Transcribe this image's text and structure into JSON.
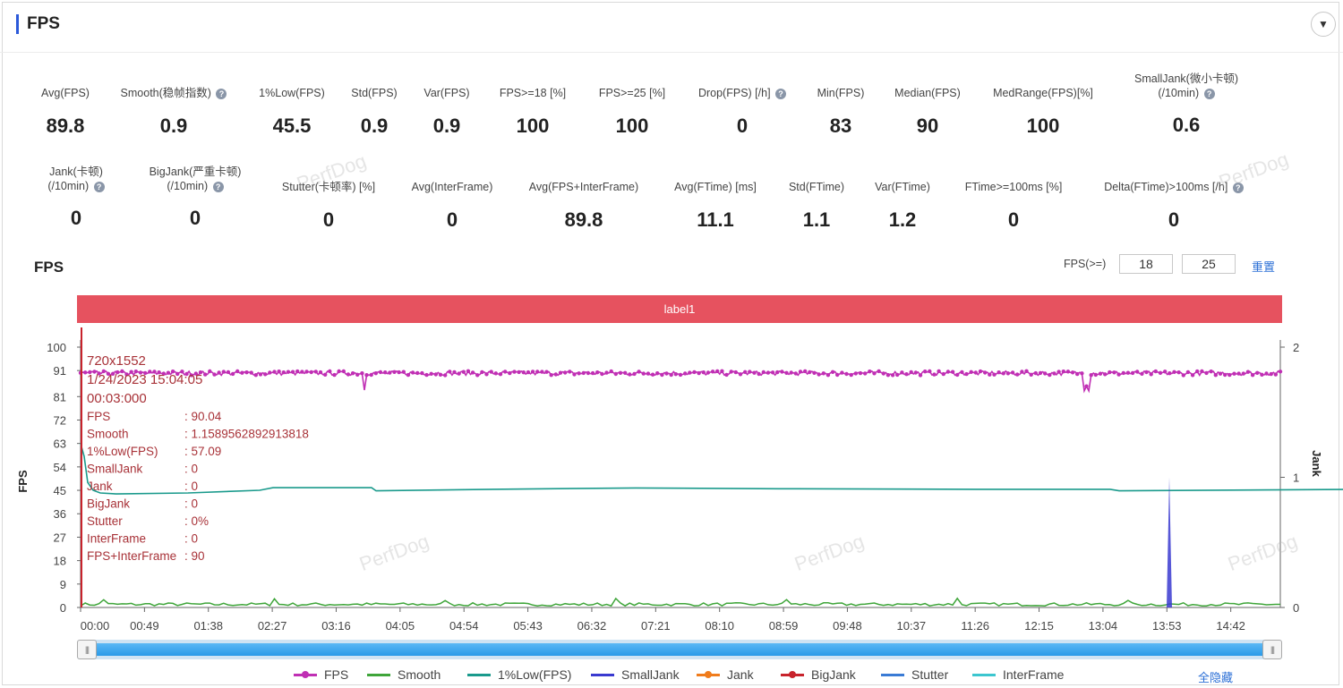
{
  "header": {
    "title": "FPS"
  },
  "metrics_row1": [
    {
      "label": "Avg(FPS)",
      "value": "89.8",
      "help": false,
      "cx": 73
    },
    {
      "label": "Smooth(稳帧指数)",
      "value": "0.9",
      "help": true,
      "cx": 194
    },
    {
      "label": "1%Low(FPS)",
      "value": "45.5",
      "help": false,
      "cx": 326
    },
    {
      "label": "Std(FPS)",
      "value": "0.9",
      "help": false,
      "cx": 418
    },
    {
      "label": "Var(FPS)",
      "value": "0.9",
      "help": false,
      "cx": 499
    },
    {
      "label": "FPS>=18 [%]",
      "value": "100",
      "help": false,
      "cx": 595
    },
    {
      "label": "FPS>=25 [%]",
      "value": "100",
      "help": false,
      "cx": 706
    },
    {
      "label": "Drop(FPS) [/h]",
      "value": "0",
      "help": true,
      "cx": 829
    },
    {
      "label": "Min(FPS)",
      "value": "83",
      "help": false,
      "cx": 939
    },
    {
      "label": "Median(FPS)",
      "value": "90",
      "help": false,
      "cx": 1036
    },
    {
      "label": "MedRange(FPS)[%]",
      "value": "100",
      "help": false,
      "cx": 1165
    }
  ],
  "metric_smalljank": {
    "label1": "SmallJank(微小卡顿)",
    "label2": "(/10min)",
    "value": "0.6"
  },
  "metric_jank": {
    "label1": "Jank(卡顿)",
    "label2": "(/10min)",
    "value": "0"
  },
  "metric_bigjank": {
    "label1": "BigJank(严重卡顿)",
    "label2": "(/10min)",
    "value": "0"
  },
  "metrics_row2": [
    {
      "label": "Stutter(卡顿率) [%]",
      "value": "0",
      "help": false,
      "cx": 367
    },
    {
      "label": "Avg(InterFrame)",
      "value": "0",
      "help": false,
      "cx": 505
    },
    {
      "label": "Avg(FPS+InterFrame)",
      "value": "89.8",
      "help": false,
      "cx": 652
    },
    {
      "label": "Avg(FTime) [ms]",
      "value": "11.1",
      "help": false,
      "cx": 799
    },
    {
      "label": "Std(FTime)",
      "value": "1.1",
      "help": false,
      "cx": 912
    },
    {
      "label": "Var(FTime)",
      "value": "1.2",
      "help": false,
      "cx": 1008
    },
    {
      "label": "FTime>=100ms [%]",
      "value": "0",
      "help": false,
      "cx": 1132
    },
    {
      "label": "Delta(FTime)>100ms [/h]",
      "value": "0",
      "help": true,
      "cx": 1311
    }
  ],
  "chart_header": {
    "title": "FPS",
    "threshold_label": "FPS(>=)",
    "threshold1": "18",
    "threshold2": "25",
    "reset_label": "重置"
  },
  "label_band": "label1",
  "tooltip": {
    "resolution": "720x1552",
    "timestamp": "1/24/2023 15:04:05",
    "elapsed": "00:03:000",
    "rows": [
      {
        "k": "FPS",
        "v": ": 90.04"
      },
      {
        "k": "Smooth",
        "v": ": 1.1589562892913818"
      },
      {
        "k": "1%Low(FPS)",
        "v": ": 57.09"
      },
      {
        "k": "SmallJank",
        "v": ": 0"
      },
      {
        "k": "Jank",
        "v": ": 0"
      },
      {
        "k": "BigJank",
        "v": ": 0"
      },
      {
        "k": "Stutter",
        "v": ": 0%"
      },
      {
        "k": "InterFrame",
        "v": ": 0"
      },
      {
        "k": "FPS+InterFrame",
        "v": ": 90"
      }
    ]
  },
  "chart_data": {
    "type": "line",
    "ylabel": "FPS",
    "y2label": "Jank",
    "yticks": [
      0,
      9,
      18,
      27,
      36,
      45,
      54,
      63,
      72,
      81,
      91,
      100
    ],
    "y2ticks": [
      0,
      1,
      2
    ],
    "ylim": [
      0,
      100
    ],
    "y2lim": [
      0,
      2
    ],
    "xticks": [
      "00:00",
      "00:49",
      "01:38",
      "02:27",
      "03:16",
      "04:05",
      "04:54",
      "05:43",
      "06:32",
      "07:21",
      "08:10",
      "08:59",
      "09:48",
      "10:37",
      "11:26",
      "12:15",
      "13:04",
      "13:53",
      "14:42"
    ],
    "x_range_seconds": [
      0,
      920
    ],
    "series": [
      {
        "name": "FPS",
        "color": "#c02fb4",
        "approx": "around 90 throughout; dips near 03:16 (~84) and 13:04 (~83)"
      },
      {
        "name": "Smooth",
        "color": "#3fa53a",
        "approx": "near 0-2"
      },
      {
        "name": "1%Low(FPS)",
        "color": "#1a9a8c",
        "approx": "starts ~63, drops to ~44, rises to ~46 after 03:16, ~45.5 later"
      },
      {
        "name": "SmallJank",
        "color": "#3a3ad0",
        "approx": "single spike of 1 at ~13:53"
      },
      {
        "name": "Jank",
        "color": "#f07c1c",
        "approx": "0"
      },
      {
        "name": "BigJank",
        "color": "#c8232c",
        "approx": "0"
      },
      {
        "name": "Stutter",
        "color": "#3a7bd5",
        "approx": "0"
      },
      {
        "name": "InterFrame",
        "color": "#3cc6cf",
        "approx": "0"
      }
    ]
  },
  "legend": [
    {
      "name": "FPS",
      "color": "#c02fb4",
      "dot": true
    },
    {
      "name": "Smooth",
      "color": "#3fa53a",
      "dot": false
    },
    {
      "name": "1%Low(FPS)",
      "color": "#1a9a8c",
      "dot": false
    },
    {
      "name": "SmallJank",
      "color": "#3a3ad0",
      "dot": false
    },
    {
      "name": "Jank",
      "color": "#f07c1c",
      "dot": true
    },
    {
      "name": "BigJank",
      "color": "#c8232c",
      "dot": true
    },
    {
      "name": "Stutter",
      "color": "#3a7bd5",
      "dot": false
    },
    {
      "name": "InterFrame",
      "color": "#3cc6cf",
      "dot": false
    }
  ],
  "hide_all_label": "全隐藏",
  "watermark": "PerfDog"
}
